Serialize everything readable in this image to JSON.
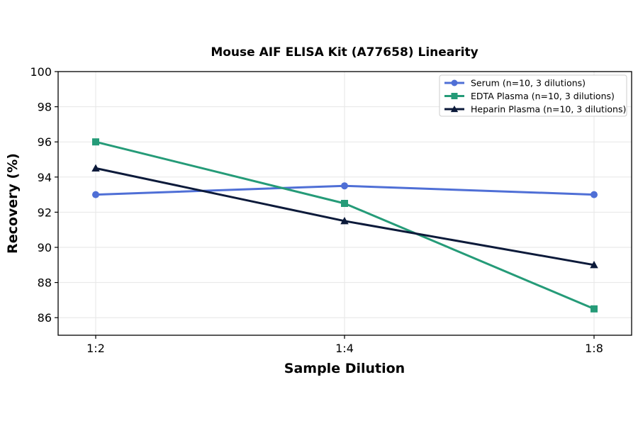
{
  "chart_data": {
    "type": "line",
    "title": "Mouse AIF ELISA Kit (A77658) Linearity",
    "xlabel": "Sample Dilution",
    "ylabel": "Recovery (%)",
    "categories": [
      "1:2",
      "1:4",
      "1:8"
    ],
    "ylim": [
      85,
      100
    ],
    "yticks": [
      86,
      88,
      90,
      92,
      94,
      96,
      98,
      100
    ],
    "grid": true,
    "legend": "top-right",
    "series": [
      {
        "name": "Serum (n=10, 3 dilutions)",
        "values": [
          93.0,
          93.5,
          93.0
        ],
        "color": "#4f6fd6",
        "marker": "circle"
      },
      {
        "name": "EDTA Plasma (n=10, 3 dilutions)",
        "values": [
          96.0,
          92.5,
          86.5
        ],
        "color": "#259b78",
        "marker": "square"
      },
      {
        "name": "Heparin Plasma (n=10, 3 dilutions)",
        "values": [
          94.5,
          91.5,
          89.0
        ],
        "color": "#0c1a3a",
        "marker": "triangle"
      }
    ]
  }
}
